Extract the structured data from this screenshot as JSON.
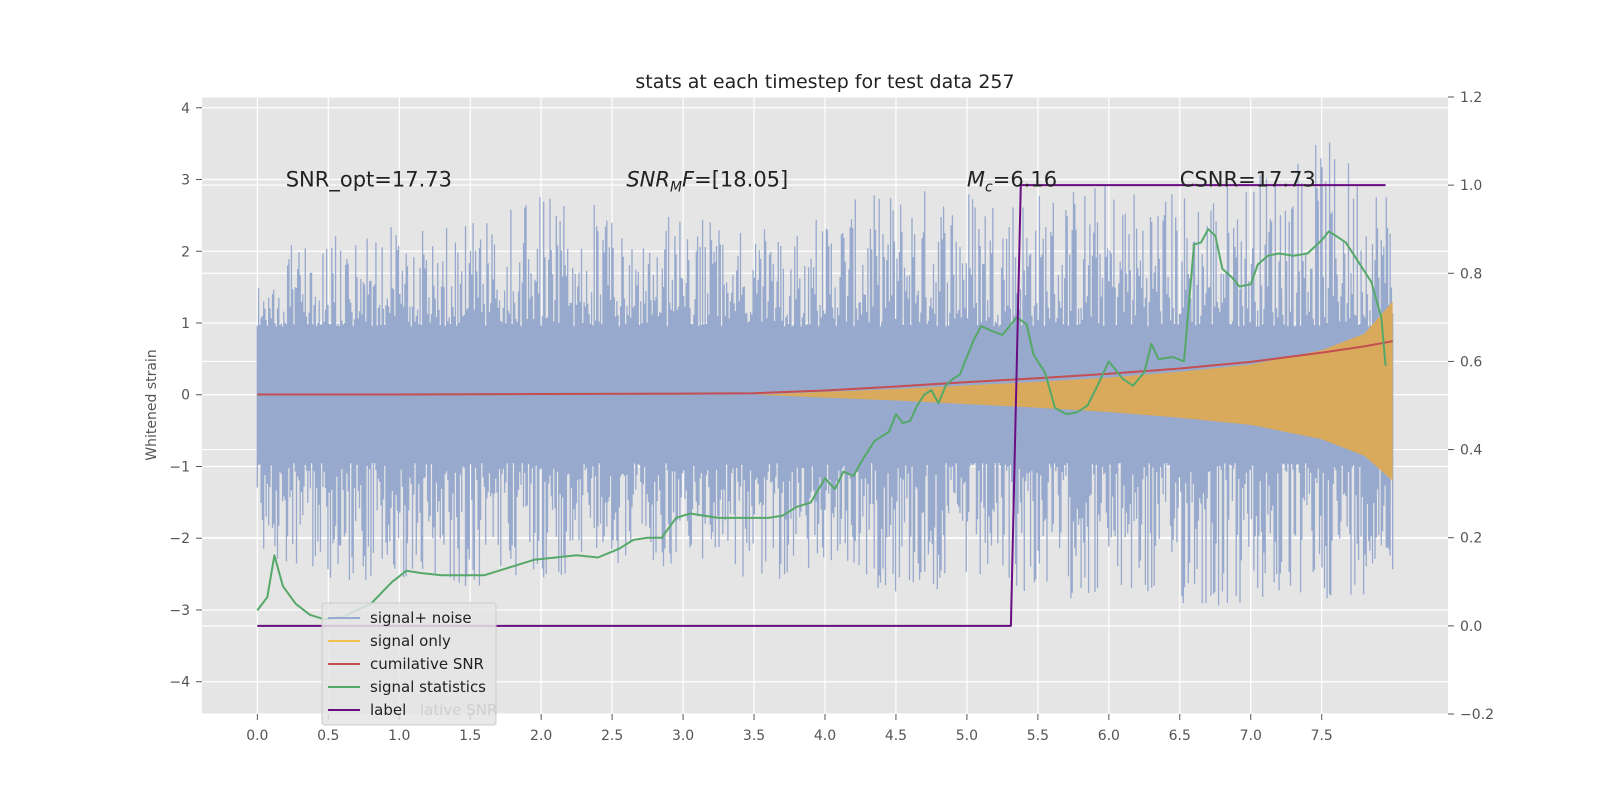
{
  "chart_data": {
    "type": "line",
    "title": "stats at each timestep for test data 257",
    "ylabel": "Whitened strain",
    "ylabel_right": "",
    "xlabel": "",
    "xlim": [
      -0.39,
      8.39
    ],
    "ylim": [
      -4.45,
      4.15
    ],
    "ylim_right": [
      -0.2,
      1.2
    ],
    "x_ticks": [
      "0.0",
      "0.5",
      "1.0",
      "1.5",
      "2.0",
      "2.5",
      "3.0",
      "3.5",
      "4.0",
      "4.5",
      "5.0",
      "5.5",
      "6.0",
      "6.5",
      "7.0",
      "7.5"
    ],
    "y_ticks": [
      "4",
      "3",
      "2",
      "1",
      "0",
      "−1",
      "−2",
      "−3",
      "−4"
    ],
    "y_ticks_right": [
      "1.2",
      "1.0",
      "0.8",
      "0.6",
      "0.4",
      "0.2",
      "0.0",
      "−0.2"
    ],
    "annotations": [
      {
        "text": "SNR_opt=17.73",
        "x": 0.2,
        "y": 3.0
      },
      {
        "text": "SNR_MF=[18.05]",
        "prefix": "SNR",
        "sub": "M",
        "suffix": "F=[18.05]",
        "x": 2.6,
        "y": 3.0
      },
      {
        "text": "M_c=6.16",
        "prefix": "M",
        "sub": "c",
        "suffix": "=6.16",
        "x": 5.0,
        "y": 3.0
      },
      {
        "text": "CSNR=17.73",
        "x": 6.5,
        "y": 3.0
      }
    ],
    "legend": {
      "location": "lower-left",
      "entries": [
        {
          "label": "signal+ noise",
          "color": "#97a9cd"
        },
        {
          "label": "signal only",
          "color": "#f2c14e"
        },
        {
          "label": "cumilative SNR",
          "color": "#c44e52"
        },
        {
          "label": "signal statistics",
          "color": "#55a868"
        },
        {
          "label": "label",
          "color": "#6a0d83"
        }
      ],
      "hidden_text": "lative SNR"
    },
    "series": [
      {
        "name": "signal+ noise",
        "axis": "left",
        "style": "dense band",
        "color": "#97a9cd",
        "x": [
          0.0,
          0.5,
          1.0,
          1.5,
          2.0,
          2.5,
          3.0,
          3.5,
          4.0,
          4.5,
          5.0,
          5.5,
          6.0,
          6.5,
          7.0,
          7.5,
          8.0
        ],
        "upper": [
          1.9,
          2.3,
          2.5,
          2.4,
          2.8,
          2.6,
          2.5,
          2.3,
          2.6,
          2.9,
          3.0,
          2.9,
          3.0,
          2.9,
          3.1,
          3.6,
          3.0
        ],
        "lower": [
          -2.2,
          -2.6,
          -2.6,
          -2.7,
          -2.6,
          -2.4,
          -2.4,
          -2.6,
          -2.5,
          -2.8,
          -2.8,
          -2.8,
          -2.9,
          -3.0,
          -3.1,
          -2.9,
          -2.7
        ]
      },
      {
        "name": "signal only",
        "axis": "left",
        "style": "envelope",
        "color": "#e0aa50",
        "x": [
          3.5,
          4.0,
          4.5,
          5.0,
          5.5,
          6.0,
          6.5,
          7.0,
          7.5,
          7.8,
          8.0
        ],
        "upper": [
          0.0,
          0.04,
          0.08,
          0.13,
          0.18,
          0.24,
          0.32,
          0.42,
          0.62,
          0.85,
          1.3
        ],
        "lower": [
          0.0,
          -0.04,
          -0.08,
          -0.13,
          -0.18,
          -0.24,
          -0.32,
          -0.42,
          -0.62,
          -0.85,
          -1.2
        ]
      },
      {
        "name": "cumilative SNR",
        "axis": "right",
        "color": "#c44e52",
        "x": [
          0.0,
          1.0,
          2.0,
          3.0,
          3.5,
          4.0,
          4.5,
          5.0,
          5.5,
          6.0,
          6.5,
          7.0,
          7.5,
          7.8,
          8.0
        ],
        "y": [
          0.525,
          0.525,
          0.526,
          0.527,
          0.528,
          0.534,
          0.543,
          0.553,
          0.562,
          0.572,
          0.584,
          0.599,
          0.62,
          0.634,
          0.646
        ]
      },
      {
        "name": "signal statistics",
        "axis": "right",
        "color": "#55a868",
        "x": [
          0.0,
          0.07,
          0.12,
          0.18,
          0.27,
          0.37,
          0.47,
          0.6,
          0.8,
          0.95,
          1.05,
          1.15,
          1.3,
          1.45,
          1.6,
          1.7,
          1.85,
          1.95,
          2.1,
          2.25,
          2.4,
          2.55,
          2.65,
          2.75,
          2.85,
          2.95,
          3.05,
          3.15,
          3.25,
          3.35,
          3.45,
          3.6,
          3.7,
          3.8,
          3.9,
          4.0,
          4.07,
          4.13,
          4.2,
          4.27,
          4.35,
          4.45,
          4.5,
          4.55,
          4.6,
          4.65,
          4.7,
          4.75,
          4.8,
          4.85,
          4.9,
          4.95,
          5.0,
          5.05,
          5.1,
          5.17,
          5.25,
          5.3,
          5.35,
          5.42,
          5.47,
          5.55,
          5.62,
          5.7,
          5.78,
          5.85,
          5.92,
          6.0,
          6.1,
          6.17,
          6.25,
          6.3,
          6.35,
          6.45,
          6.53,
          6.6,
          6.65,
          6.7,
          6.75,
          6.8,
          6.87,
          6.92,
          7.0,
          7.05,
          7.12,
          7.2,
          7.3,
          7.4,
          7.5,
          7.55,
          7.6,
          7.67,
          7.75,
          7.85,
          7.92,
          7.95
        ],
        "y": [
          0.035,
          0.065,
          0.16,
          0.09,
          0.05,
          0.025,
          0.015,
          0.02,
          0.05,
          0.1,
          0.125,
          0.12,
          0.115,
          0.115,
          0.115,
          0.125,
          0.14,
          0.15,
          0.155,
          0.16,
          0.155,
          0.175,
          0.195,
          0.2,
          0.2,
          0.245,
          0.255,
          0.25,
          0.245,
          0.245,
          0.245,
          0.245,
          0.25,
          0.27,
          0.28,
          0.335,
          0.31,
          0.35,
          0.34,
          0.38,
          0.42,
          0.44,
          0.48,
          0.46,
          0.465,
          0.5,
          0.525,
          0.535,
          0.505,
          0.545,
          0.56,
          0.57,
          0.61,
          0.65,
          0.68,
          0.67,
          0.66,
          0.68,
          0.7,
          0.685,
          0.615,
          0.575,
          0.495,
          0.48,
          0.485,
          0.5,
          0.545,
          0.6,
          0.56,
          0.545,
          0.575,
          0.64,
          0.605,
          0.61,
          0.6,
          0.865,
          0.87,
          0.9,
          0.885,
          0.81,
          0.79,
          0.77,
          0.775,
          0.82,
          0.84,
          0.845,
          0.84,
          0.845,
          0.875,
          0.895,
          0.885,
          0.87,
          0.83,
          0.78,
          0.7,
          0.59
        ]
      },
      {
        "name": "label",
        "axis": "right",
        "color": "#6a0d83",
        "x": [
          0.0,
          5.31,
          5.38,
          7.95
        ],
        "y": [
          0.0,
          0.0,
          1.0,
          1.0
        ]
      }
    ]
  }
}
